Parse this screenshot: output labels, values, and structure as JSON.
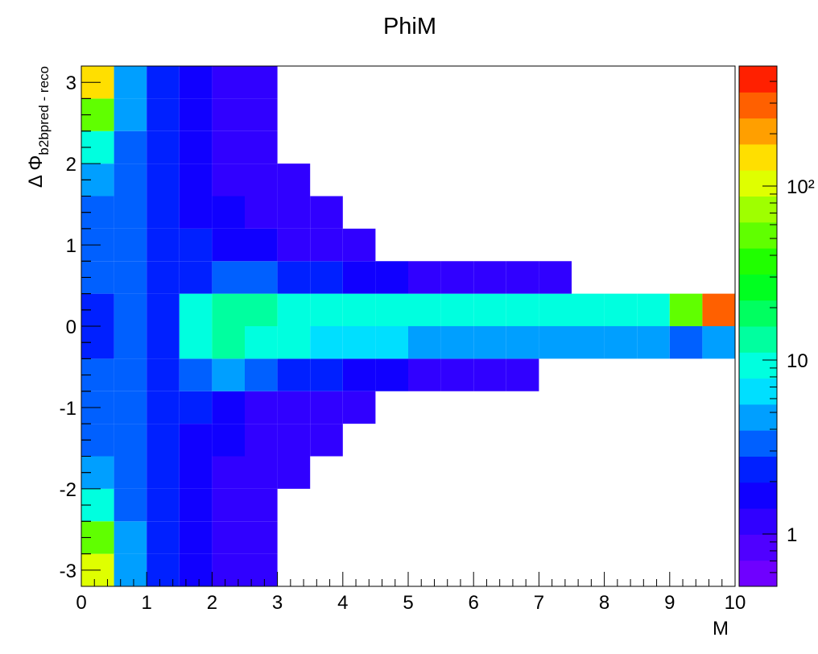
{
  "chart_data": {
    "type": "heatmap",
    "title": "PhiM",
    "xlabel": "M",
    "ylabel": {
      "main": "Δ Φ",
      "sub": "b2bpred - reco"
    },
    "xlim": [
      0,
      10
    ],
    "xticks": [
      0,
      1,
      2,
      3,
      4,
      5,
      6,
      7,
      8,
      9,
      10
    ],
    "ylim": [
      -3.2,
      3.2
    ],
    "yticks": [
      -3,
      -2,
      -1,
      0,
      1,
      2,
      3
    ],
    "zlim": [
      0.5,
      490
    ],
    "zlog": true,
    "zticks": [
      1,
      10,
      {
        "value": 100,
        "label": "10²"
      }
    ],
    "palette": [
      "#7f00ff",
      "#0000ff",
      "#00ffff",
      "#00ff00",
      "#ffff00",
      "#ff0000"
    ],
    "xbins": [
      0,
      0.5,
      1,
      1.5,
      2,
      2.5,
      3,
      3.5,
      4,
      4.5,
      5,
      5.5,
      6,
      6.5,
      7,
      7.5,
      8,
      8.5,
      9,
      9.5,
      10
    ],
    "ybins": [
      -3.2,
      -2.8,
      -2.4,
      -2,
      -1.6,
      -1.2,
      -0.8,
      -0.4,
      0,
      0.4,
      0.8,
      1.2,
      1.6,
      2,
      2.4,
      2.8,
      3.2
    ],
    "z": [
      [
        120,
        5,
        2,
        1.5,
        1,
        1,
        0,
        0,
        0,
        0,
        0,
        0,
        0,
        0,
        0,
        0,
        0,
        0,
        0,
        0
      ],
      [
        60,
        4,
        2,
        1.5,
        1,
        1,
        0,
        0,
        0,
        0,
        0,
        0,
        0,
        0,
        0,
        0,
        0,
        0,
        0,
        0
      ],
      [
        8,
        3,
        2,
        1.5,
        1,
        1,
        0,
        0,
        0,
        0,
        0,
        0,
        0,
        0,
        0,
        0,
        0,
        0,
        0,
        0
      ],
      [
        4,
        3,
        2,
        1.5,
        1,
        1,
        1,
        0,
        0,
        0,
        0,
        0,
        0,
        0,
        0,
        0,
        0,
        0,
        0,
        0
      ],
      [
        3,
        3,
        2,
        1.5,
        1.5,
        1,
        1,
        1,
        0,
        0,
        0,
        0,
        0,
        0,
        0,
        0,
        0,
        0,
        0,
        0
      ],
      [
        3,
        3,
        2,
        2,
        1.5,
        1,
        1,
        1,
        1,
        0,
        0,
        0,
        0,
        0,
        0,
        0,
        0,
        0,
        0,
        0
      ],
      [
        3,
        3,
        2,
        3,
        4,
        3,
        2,
        2,
        1.5,
        1.5,
        1,
        1,
        1,
        1,
        0,
        0,
        0,
        0,
        0,
        0
      ],
      [
        2,
        3,
        2,
        8,
        15,
        10,
        8,
        7,
        6,
        6,
        5,
        5,
        5,
        5,
        5,
        5,
        4,
        4,
        3,
        4
      ],
      [
        2,
        3,
        2,
        10,
        15,
        12,
        10,
        9,
        8,
        8,
        8,
        8,
        8,
        8,
        8,
        8,
        8,
        10,
        50,
        300
      ],
      [
        3,
        3,
        2,
        2,
        3,
        3,
        2,
        2,
        1.5,
        1.5,
        1,
        1,
        1,
        1,
        1,
        0,
        0,
        0,
        0,
        0
      ],
      [
        3,
        3,
        2,
        2,
        1.5,
        1.5,
        1,
        1,
        1,
        0,
        0,
        0,
        0,
        0,
        0,
        0,
        0,
        0,
        0,
        0
      ],
      [
        3,
        3,
        2,
        1.5,
        1.5,
        1,
        1,
        1,
        0,
        0,
        0,
        0,
        0,
        0,
        0,
        0,
        0,
        0,
        0,
        0
      ],
      [
        4,
        3,
        2,
        1.5,
        1,
        1,
        1,
        0,
        0,
        0,
        0,
        0,
        0,
        0,
        0,
        0,
        0,
        0,
        0,
        0
      ],
      [
        8,
        3,
        2,
        1.5,
        1,
        1,
        0,
        0,
        0,
        0,
        0,
        0,
        0,
        0,
        0,
        0,
        0,
        0,
        0,
        0
      ],
      [
        60,
        4,
        2,
        1.5,
        1,
        1,
        0,
        0,
        0,
        0,
        0,
        0,
        0,
        0,
        0,
        0,
        0,
        0,
        0,
        0
      ],
      [
        150,
        5,
        2,
        1.5,
        1,
        1,
        0,
        0,
        0,
        0,
        0,
        0,
        0,
        0,
        0,
        0,
        0,
        0,
        0,
        0
      ]
    ]
  }
}
